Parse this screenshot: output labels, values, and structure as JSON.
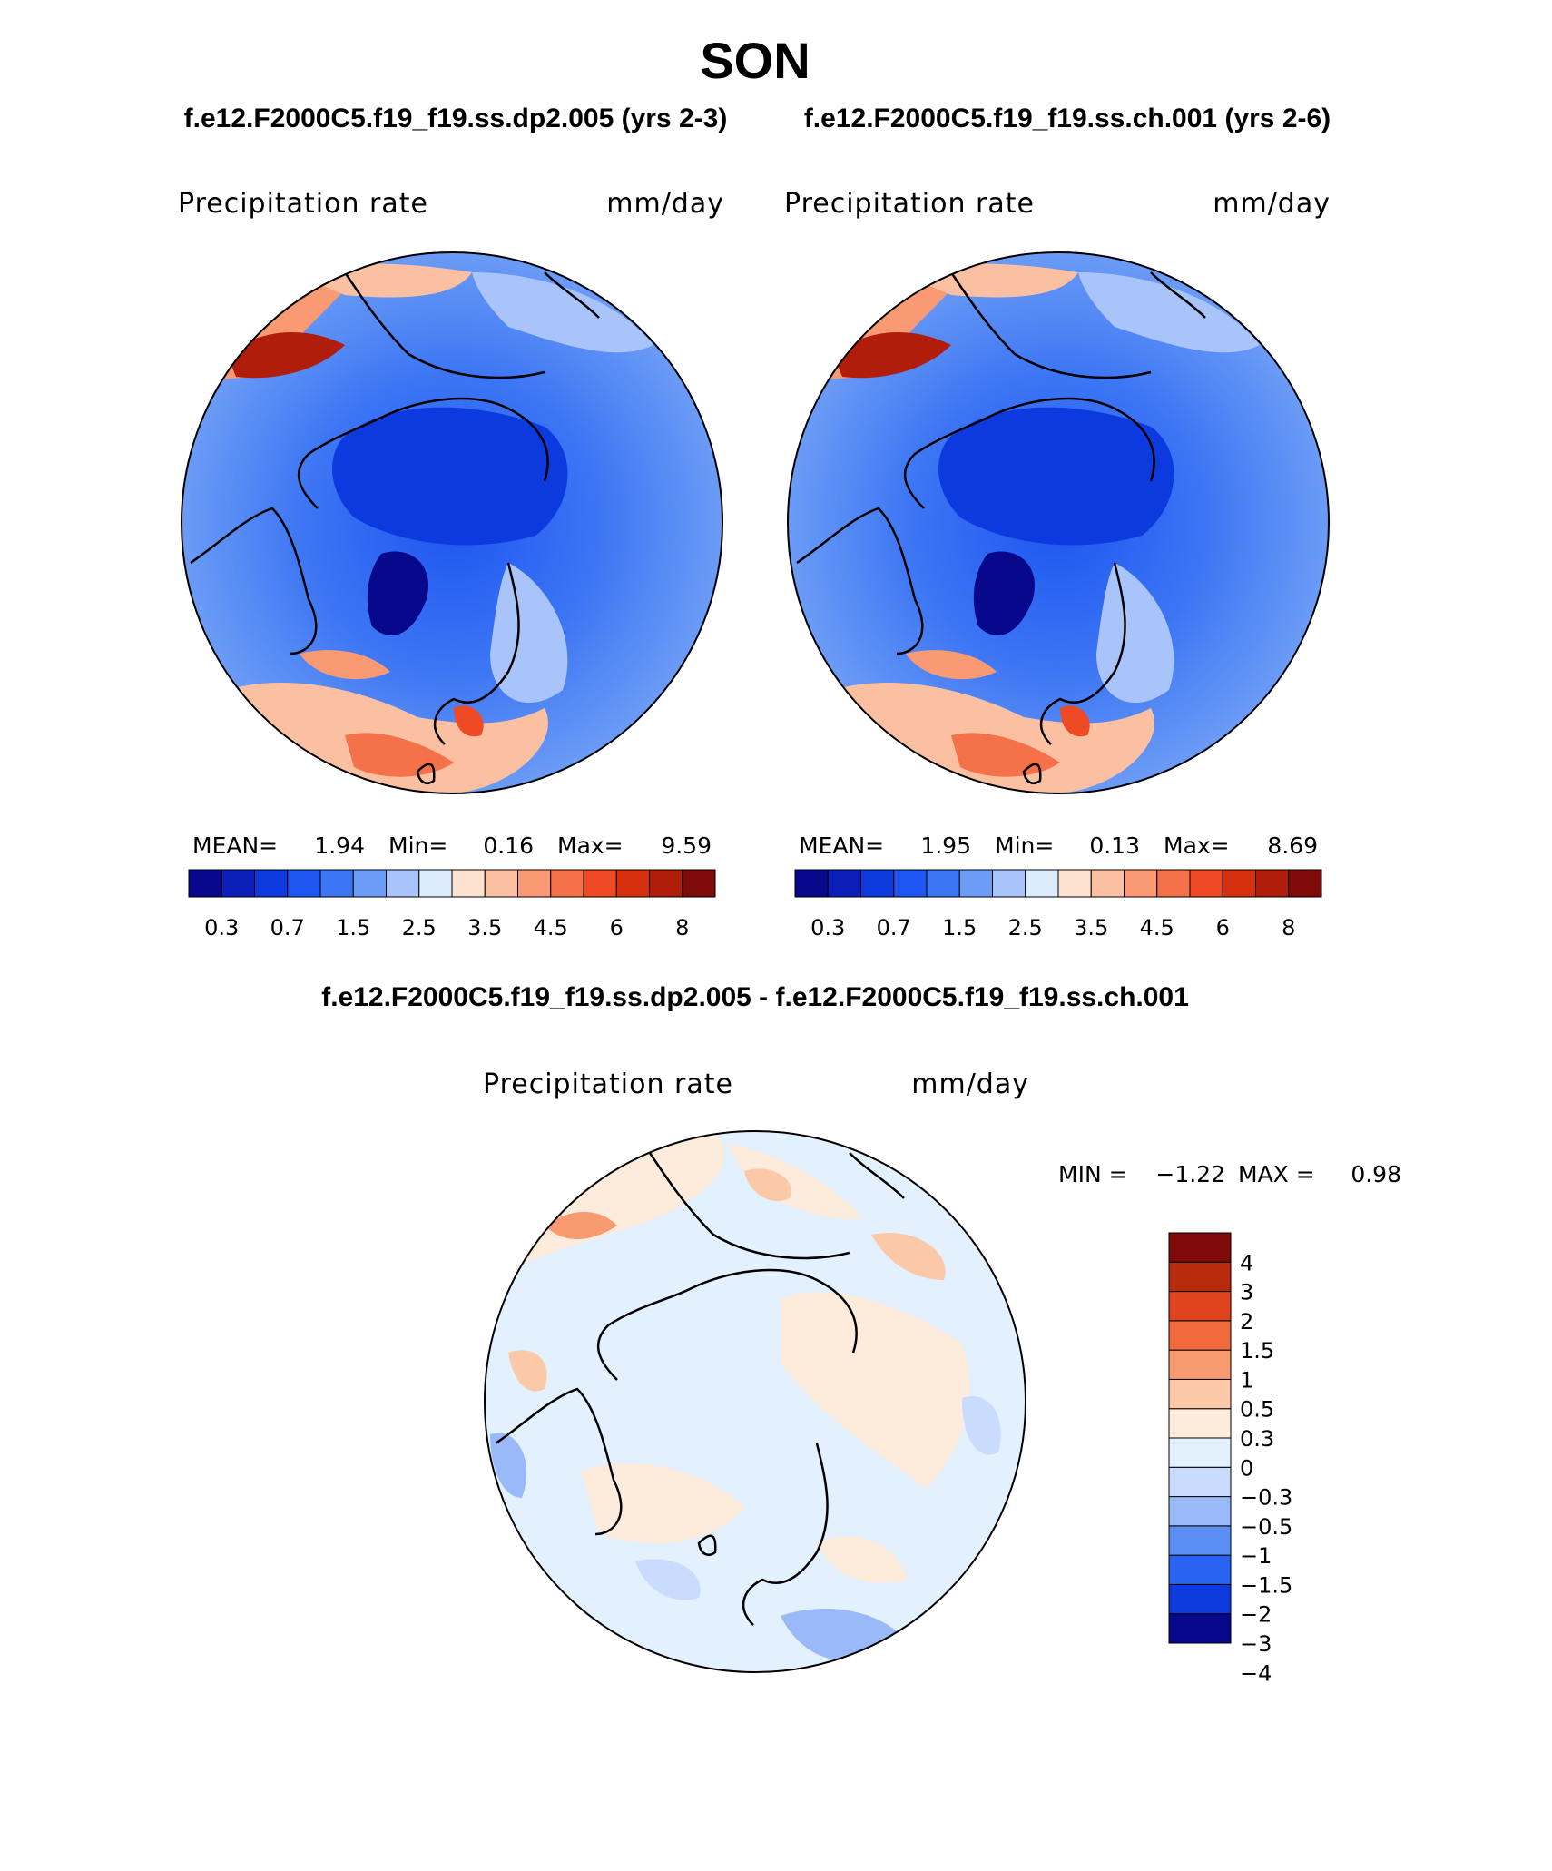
{
  "page": {
    "title": "SON",
    "case_a_title": "f.e12.F2000C5.f19_f19.ss.dp2.005 (yrs 2-3)",
    "case_b_title": "f.e12.F2000C5.f19_f19.ss.ch.001 (yrs 2-6)",
    "diff_title": "f.e12.F2000C5.f19_f19.ss.dp2.005 - f.e12.F2000C5.f19_f19.ss.ch.001"
  },
  "panels": {
    "a": {
      "variable": "Precipitation rate",
      "units": "mm/day",
      "stats": {
        "mean_label": "MEAN=",
        "mean": "1.94",
        "min_label": "Min=",
        "min": "0.16",
        "max_label": "Max=",
        "max": "9.59"
      }
    },
    "b": {
      "variable": "Precipitation rate",
      "units": "mm/day",
      "stats": {
        "mean_label": "MEAN=",
        "mean": "1.95",
        "min_label": "Min=",
        "min": "0.13",
        "max_label": "Max=",
        "max": "8.69"
      }
    },
    "diff": {
      "variable": "Precipitation rate",
      "units": "mm/day",
      "min_label": "MIN =",
      "min": "−1.22",
      "max_label": "MAX =",
      "max": "0.98"
    }
  },
  "colorbar_abs": {
    "colors": [
      "#08088c",
      "#0b1eb8",
      "#0d3ade",
      "#1d56f0",
      "#3d76f4",
      "#6c9cf6",
      "#a9c4fa",
      "#dcebfe",
      "#fde3cf",
      "#fbc0a2",
      "#f99a74",
      "#f57149",
      "#ee4a26",
      "#d7300f",
      "#b01d0b",
      "#7e0a0a"
    ],
    "tick_labels": [
      "0.3",
      "0.7",
      "1.5",
      "2.5",
      "3.5",
      "4.5",
      "6",
      "8"
    ]
  },
  "colorbar_diff": {
    "colors": [
      "#08088c",
      "#0d3ade",
      "#2a62f2",
      "#5b8ef5",
      "#99b9f9",
      "#c9dcfd",
      "#e3f0fe",
      "#fdebdb",
      "#fbc8a8",
      "#f89a70",
      "#f06a3c",
      "#e0441d",
      "#b72a0b",
      "#7e0a0a"
    ],
    "labels": [
      "4",
      "3",
      "2",
      "1.5",
      "1",
      "0.5",
      "0.3",
      "0",
      "−0.3",
      "−0.5",
      "−1",
      "−1.5",
      "−2",
      "−3",
      "−4"
    ]
  }
}
